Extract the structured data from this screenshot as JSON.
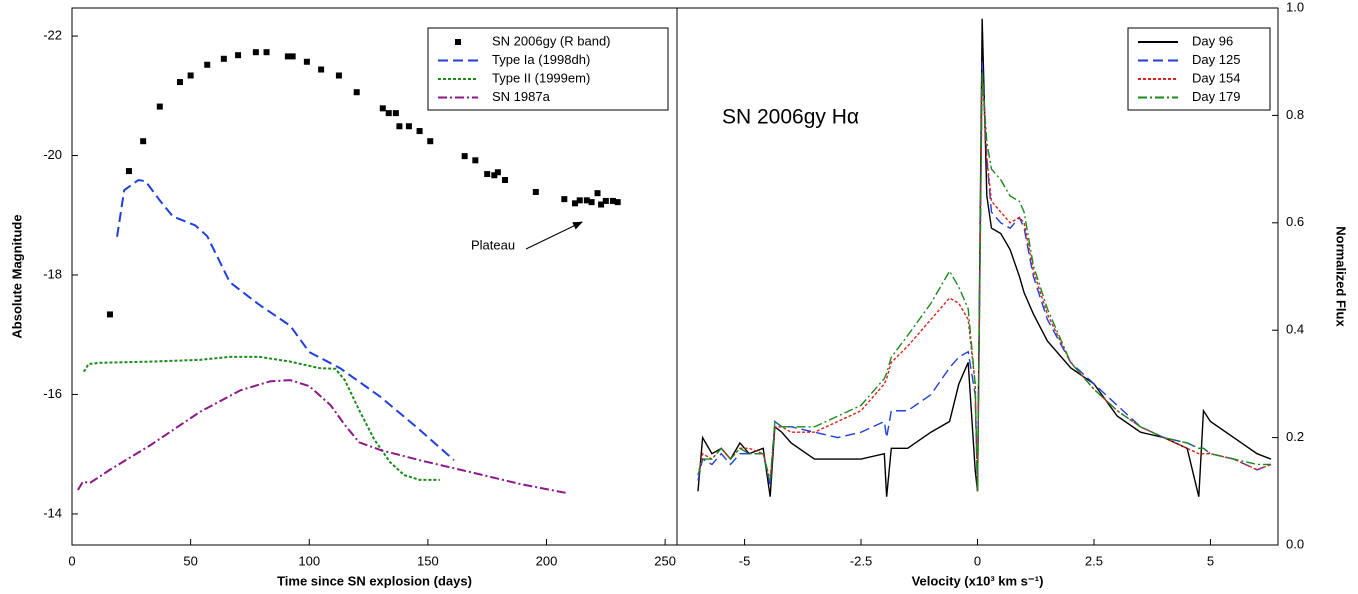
{
  "chart_data": [
    {
      "type": "line",
      "xlabel": "Time since SN explosion (days)",
      "ylabel": "Absolute Magnitude",
      "xlim": [
        0,
        255
      ],
      "xticks": [
        0,
        50,
        100,
        150,
        200,
        250
      ],
      "ylim": [
        -13.48,
        -22.47
      ],
      "yticks": [
        -22,
        -20,
        -18,
        -16,
        -14
      ],
      "y_axis_side": "left",
      "legend": "upper right",
      "annotation": "Plateau",
      "series": [
        {
          "name": "SN 2006gy  (R band)",
          "color": "#000000",
          "style": "marker",
          "x": [
            16,
            24,
            30,
            37,
            45.5,
            50,
            57,
            64,
            70,
            77.5,
            82,
            91,
            93,
            99,
            105,
            112.5,
            120,
            131,
            133.5,
            136.5,
            138,
            142,
            146.5,
            151,
            165.5,
            170,
            175,
            178,
            179.5,
            182.5,
            195.5,
            207.5,
            212,
            214,
            217,
            219,
            221.5,
            223,
            225,
            228,
            230
          ],
          "values": [
            -17.34,
            -19.74,
            -20.24,
            -20.82,
            -21.23,
            -21.34,
            -21.52,
            -21.62,
            -21.68,
            -21.73,
            -21.73,
            -21.66,
            -21.66,
            -21.57,
            -21.44,
            -21.34,
            -21.06,
            -20.79,
            -20.71,
            -20.71,
            -20.49,
            -20.49,
            -20.41,
            -20.24,
            -19.99,
            -19.92,
            -19.69,
            -19.67,
            -19.72,
            -19.59,
            -19.39,
            -19.27,
            -19.2,
            -19.25,
            -19.25,
            -19.22,
            -19.37,
            -19.18,
            -19.24,
            -19.24,
            -19.22
          ]
        },
        {
          "name": "Type Ia (1998dh)",
          "color": "#1f3fdc",
          "style": "dashed",
          "x": [
            19,
            22,
            28,
            31,
            37,
            42.5,
            52,
            57,
            66.5,
            79,
            92,
            100,
            113,
            130,
            146.5,
            161
          ],
          "values": [
            -18.64,
            -19.42,
            -19.59,
            -19.57,
            -19.25,
            -18.98,
            -18.83,
            -18.65,
            -17.88,
            -17.5,
            -17.15,
            -16.71,
            -16.44,
            -15.96,
            -15.41,
            -14.9
          ]
        },
        {
          "name": "Type II (1999em)",
          "color": "#1a8a1a",
          "style": "dotted",
          "x": [
            5,
            7,
            12,
            33,
            54,
            66.5,
            79,
            92,
            104.5,
            111,
            115,
            121,
            127.5,
            134,
            140,
            146.5,
            155
          ],
          "values": [
            -16.38,
            -16.51,
            -16.53,
            -16.55,
            -16.58,
            -16.63,
            -16.63,
            -16.55,
            -16.44,
            -16.43,
            -16.24,
            -15.74,
            -15.24,
            -14.87,
            -14.65,
            -14.57,
            -14.57
          ]
        },
        {
          "name": "SN 1987a",
          "color": "#8a1a8a",
          "style": "dashdot",
          "x": [
            2.5,
            4.6,
            7.6,
            16,
            33,
            54,
            71,
            83.5,
            92,
            100,
            109,
            115,
            121,
            130,
            146.5,
            168,
            189,
            208.5
          ],
          "values": [
            -14.4,
            -14.54,
            -14.52,
            -14.74,
            -15.15,
            -15.71,
            -16.07,
            -16.22,
            -16.24,
            -16.14,
            -15.82,
            -15.49,
            -15.2,
            -15.07,
            -14.9,
            -14.7,
            -14.5,
            -14.35
          ]
        }
      ]
    },
    {
      "type": "line",
      "xlabel": "Velocity (x10³ km s⁻¹)",
      "ylabel": "Normalized Flux",
      "xlim": [
        -6.45,
        6.45
      ],
      "xticks": [
        -5,
        -2.5,
        0,
        2.5,
        5
      ],
      "ylim": [
        0,
        1
      ],
      "yticks": [
        {
          "value": 0,
          "label": "0.0"
        },
        0.2,
        0.4,
        0.6,
        0.8,
        {
          "value": 1,
          "label": "1.0"
        }
      ],
      "y_axis_side": "right",
      "legend": "upper right",
      "annotation": "SN 2006gy Hα",
      "x": [
        -6.0,
        -5.9,
        -5.7,
        -5.5,
        -5.3,
        -5.1,
        -4.9,
        -4.6,
        -4.45,
        -4.35,
        -4.2,
        -4.0,
        -3.5,
        -3.0,
        -2.5,
        -2.0,
        -1.95,
        -1.85,
        -1.5,
        -1.0,
        -0.6,
        -0.4,
        -0.2,
        -0.05,
        0.0,
        0.1,
        0.2,
        0.3,
        0.5,
        0.7,
        0.9,
        1.0,
        1.2,
        1.5,
        2.0,
        2.5,
        3.0,
        3.5,
        4.0,
        4.5,
        4.75,
        4.85,
        5.0,
        5.5,
        6.0,
        6.3
      ],
      "series": [
        {
          "name": "Day 96",
          "color": "#000000",
          "style": "solid",
          "values": [
            0.1,
            0.2,
            0.17,
            0.18,
            0.16,
            0.19,
            0.17,
            0.18,
            0.09,
            0.22,
            0.21,
            0.19,
            0.16,
            0.16,
            0.16,
            0.17,
            0.09,
            0.18,
            0.18,
            0.21,
            0.23,
            0.3,
            0.34,
            0.14,
            0.1,
            0.98,
            0.65,
            0.59,
            0.58,
            0.55,
            0.5,
            0.47,
            0.43,
            0.38,
            0.33,
            0.3,
            0.24,
            0.21,
            0.2,
            0.18,
            0.09,
            0.25,
            0.23,
            0.2,
            0.17,
            0.16
          ]
        },
        {
          "name": "Day 125",
          "color": "#1f3fdc",
          "style": "dashed",
          "values": [
            0.12,
            0.16,
            0.15,
            0.17,
            0.15,
            0.17,
            0.17,
            0.17,
            0.11,
            0.23,
            0.22,
            0.22,
            0.21,
            0.2,
            0.21,
            0.23,
            0.2,
            0.25,
            0.25,
            0.28,
            0.33,
            0.35,
            0.36,
            0.28,
            0.1,
            0.9,
            0.72,
            0.62,
            0.6,
            0.59,
            0.61,
            0.59,
            0.5,
            0.42,
            0.34,
            0.3,
            0.26,
            0.22,
            0.2,
            0.19,
            0.18,
            0.18,
            0.17,
            0.16,
            0.14,
            0.15
          ]
        },
        {
          "name": "Day 154",
          "color": "#e0201c",
          "style": "dotted",
          "values": [
            0.13,
            0.17,
            0.16,
            0.18,
            0.16,
            0.18,
            0.18,
            0.17,
            0.12,
            0.22,
            0.22,
            0.21,
            0.21,
            0.23,
            0.25,
            0.3,
            0.31,
            0.34,
            0.37,
            0.42,
            0.46,
            0.45,
            0.42,
            0.3,
            0.1,
            0.88,
            0.72,
            0.64,
            0.62,
            0.6,
            0.61,
            0.6,
            0.51,
            0.43,
            0.34,
            0.29,
            0.25,
            0.22,
            0.2,
            0.18,
            0.17,
            0.17,
            0.17,
            0.16,
            0.14,
            0.15
          ]
        },
        {
          "name": "Day 179",
          "color": "#1a8a1a",
          "style": "dashdot",
          "values": [
            0.13,
            0.16,
            0.16,
            0.18,
            0.16,
            0.18,
            0.17,
            0.17,
            0.12,
            0.23,
            0.22,
            0.22,
            0.22,
            0.24,
            0.26,
            0.31,
            0.32,
            0.35,
            0.39,
            0.45,
            0.51,
            0.48,
            0.44,
            0.3,
            0.1,
            0.88,
            0.75,
            0.7,
            0.68,
            0.65,
            0.64,
            0.62,
            0.52,
            0.44,
            0.34,
            0.29,
            0.25,
            0.22,
            0.2,
            0.19,
            0.18,
            0.18,
            0.17,
            0.16,
            0.15,
            0.15
          ]
        }
      ]
    }
  ]
}
